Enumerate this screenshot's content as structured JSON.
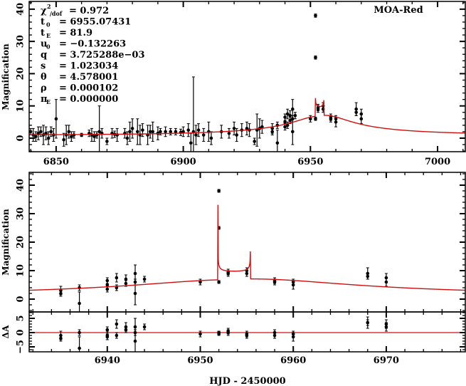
{
  "chart_data": {
    "type": "scatter",
    "title": "",
    "label": "MOA-Red",
    "xlabel": "HJD - 2450000",
    "ylabel_top": "Magnification",
    "ylabel_bottom": "Magnification",
    "ylabel_resid": "ΔA",
    "params": [
      {
        "name": "χ",
        "sup": "2",
        "sub": "/dof",
        "value": "= 0.972"
      },
      {
        "name": "t",
        "sub": "0",
        "value": "= 6955.07431"
      },
      {
        "name": "t",
        "sub": "E",
        "value": "= 81.9"
      },
      {
        "name": "u",
        "sub": "0",
        "value": "= −0.132263"
      },
      {
        "name": "q",
        "value": "= 3.725288e−03"
      },
      {
        "name": "s",
        "value": "= 1.023034"
      },
      {
        "name": "θ",
        "value": "= 4.578001"
      },
      {
        "name": "ρ",
        "value": "= 0.000102"
      },
      {
        "name": "π",
        "sub": "E",
        "value": "= 0.000000"
      }
    ],
    "top_panel": {
      "xlim": [
        6839.4,
        7010.9
      ],
      "ylim": [
        -4.2,
        42.4
      ],
      "xticks": [
        "6850",
        "6900",
        "6950",
        "7000"
      ],
      "xtick_values": [
        6850,
        6900,
        6950,
        7000
      ],
      "yticks": [
        "0",
        "10",
        "20",
        "30",
        "40"
      ],
      "ytick_values": [
        0,
        10,
        20,
        30,
        40
      ]
    },
    "bottom_panel": {
      "xlim": [
        6931.6,
        6978.5
      ],
      "ylim": [
        -4.5,
        44.5
      ],
      "xticks": [
        "6940",
        "6950",
        "6960",
        "6970"
      ],
      "xtick_values": [
        6940,
        6950,
        6960,
        6970
      ],
      "yticks": [
        "0",
        "10",
        "20",
        "30",
        "40"
      ],
      "ytick_values": [
        0,
        10,
        20,
        30,
        40
      ]
    },
    "resid_panel": {
      "ylim": [
        -6.75,
        7.25
      ],
      "yticks": [
        "−5",
        "0",
        "5"
      ],
      "ytick_values": [
        -5,
        0,
        5
      ]
    },
    "model_color": "#d01010",
    "data_color": "#000000",
    "points": [
      [
        6840,
        2,
        1,
        null
      ],
      [
        6841,
        1,
        2,
        null
      ],
      [
        6842,
        0.5,
        1.5,
        null
      ],
      [
        6843,
        1.5,
        2,
        null
      ],
      [
        6844,
        2,
        1.5,
        null
      ],
      [
        6845,
        1,
        3,
        null
      ],
      [
        6846,
        1.5,
        2,
        null
      ],
      [
        6847,
        0,
        2,
        null
      ],
      [
        6848,
        2,
        1.5,
        null
      ],
      [
        6849,
        1,
        2,
        null
      ],
      [
        6850,
        6,
        6,
        null
      ],
      [
        6853,
        -0.5,
        2,
        null
      ],
      [
        6854,
        1,
        3,
        null
      ],
      [
        6855,
        2,
        2,
        null
      ],
      [
        6856,
        0.5,
        1.5,
        null
      ],
      [
        6857,
        1,
        1,
        null
      ],
      [
        6860,
        1,
        0.5,
        null
      ],
      [
        6863,
        1.5,
        1,
        null
      ],
      [
        6864,
        1,
        2,
        null
      ],
      [
        6865,
        0.5,
        1.5,
        null
      ],
      [
        6866,
        1,
        1,
        null
      ],
      [
        6867,
        2,
        8,
        null
      ],
      [
        6868,
        1.5,
        1.5,
        null
      ],
      [
        6870,
        -1,
        1,
        null
      ],
      [
        6872,
        1.5,
        1.5,
        null
      ],
      [
        6873,
        1.2,
        1,
        null
      ],
      [
        6874,
        1,
        2,
        null
      ],
      [
        6877,
        1.5,
        1.5,
        null
      ],
      [
        6878,
        0,
        2,
        null
      ],
      [
        6879,
        2,
        3,
        null
      ],
      [
        6880,
        3,
        3,
        null
      ],
      [
        6882,
        2,
        4,
        null
      ],
      [
        6883,
        1,
        3,
        null
      ],
      [
        6884,
        2.5,
        2,
        null
      ],
      [
        6886,
        1,
        3,
        null
      ],
      [
        6887,
        2,
        2,
        null
      ],
      [
        6888,
        2,
        3,
        null
      ],
      [
        6890,
        1.5,
        2,
        null
      ],
      [
        6891,
        2,
        1,
        null
      ],
      [
        6893,
        2,
        1.5,
        null
      ],
      [
        6895,
        2,
        1,
        null
      ],
      [
        6897,
        2,
        1,
        null
      ],
      [
        6899,
        1.8,
        1,
        null
      ],
      [
        6900,
        2,
        1.5,
        null
      ],
      [
        6902,
        2.5,
        2,
        null
      ],
      [
        6903,
        -1.5,
        3,
        null
      ],
      [
        6904,
        2,
        17,
        null
      ],
      [
        6905,
        1,
        3,
        null
      ],
      [
        6906,
        2.5,
        2,
        null
      ],
      [
        6908,
        1,
        2,
        null
      ],
      [
        6910,
        2,
        3,
        null
      ],
      [
        6911,
        0,
        2,
        null
      ],
      [
        6915,
        2,
        2,
        null
      ],
      [
        6918,
        1.5,
        1.5,
        null
      ],
      [
        6920,
        3,
        2,
        null
      ],
      [
        6921,
        1,
        2,
        null
      ],
      [
        6923,
        2.5,
        2,
        null
      ],
      [
        6925,
        3,
        2,
        null
      ],
      [
        6926,
        2.5,
        2,
        null
      ],
      [
        6928,
        -1,
        1,
        null
      ],
      [
        6929,
        2.5,
        5,
        null
      ],
      [
        6930,
        3,
        3,
        null
      ],
      [
        6931,
        3.5,
        2,
        null
      ],
      [
        6935,
        3,
        1.5,
        -1
      ],
      [
        6935,
        2,
        1,
        -2
      ],
      [
        6937,
        4,
        1,
        0
      ],
      [
        6937,
        -1.5,
        4,
        -5.5
      ],
      [
        6940,
        6.5,
        1,
        1
      ],
      [
        6940,
        5,
        1.5,
        -1
      ],
      [
        6940,
        3.5,
        1,
        -1.5
      ],
      [
        6941,
        7.5,
        1.5,
        3
      ],
      [
        6941,
        4,
        1,
        -1
      ],
      [
        6942,
        7,
        1.5,
        2
      ],
      [
        6942,
        5.5,
        1,
        1
      ],
      [
        6943,
        9,
        3,
        2
      ],
      [
        6943,
        2,
        4,
        -3
      ],
      [
        6943,
        6,
        1,
        0
      ],
      [
        6944,
        7,
        1,
        2
      ],
      [
        6950,
        6,
        1,
        -0.5
      ],
      [
        6952,
        38,
        0.5,
        0
      ],
      [
        6952,
        25,
        0.5,
        0
      ],
      [
        6952,
        6,
        0.5,
        -0.5
      ],
      [
        6953,
        9,
        1,
        0
      ],
      [
        6953,
        9.5,
        1,
        0.5
      ],
      [
        6955,
        9,
        1,
        -0.5
      ],
      [
        6955,
        10,
        1,
        -1
      ],
      [
        6958,
        6.5,
        1,
        0
      ],
      [
        6958,
        6,
        1,
        -1
      ],
      [
        6960,
        6,
        1,
        -0.5
      ],
      [
        6960,
        5,
        1.5,
        -1.5
      ],
      [
        6968,
        9,
        2,
        3.5
      ],
      [
        6968,
        8,
        1,
        3.5
      ],
      [
        6970,
        7.5,
        1.5,
        3
      ],
      [
        6970,
        6,
        1.5,
        2
      ]
    ]
  }
}
